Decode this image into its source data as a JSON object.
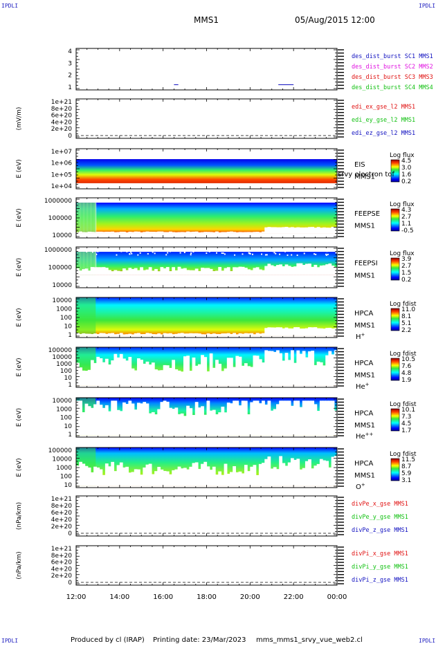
{
  "corner_label": "IPDLI",
  "header": {
    "spacecraft": "MMS1",
    "datetime": "05/Aug/2015 12:00"
  },
  "footer": {
    "produced_by": "Produced by cl (IRAP)",
    "printing_date": "Printing date: 23/Mar/2023",
    "script_name": "mms_mms1_srvy_vue_web2.cl"
  },
  "time_axis": {
    "ticks": [
      "12:00",
      "14:00",
      "16:00",
      "18:00",
      "20:00",
      "22:00",
      "00:00"
    ]
  },
  "colors": {
    "series_blue": "#1010c0",
    "series_magenta": "#e010e0",
    "series_red": "#e01010",
    "series_green": "#10c010"
  },
  "chart_data": [
    {
      "type": "line",
      "panel": "dist-burst",
      "yticks": [
        "4",
        "3",
        "2",
        "1"
      ],
      "ylim": [
        0.5,
        4.5
      ],
      "segments": [
        {
          "t0": 16.5,
          "t1": 16.7,
          "y": 1
        },
        {
          "t0": 21.3,
          "t1": 22.0,
          "y": 1
        }
      ],
      "legend": [
        {
          "text": "des_dist_burst SC1 MMS1",
          "color": "#1010c0"
        },
        {
          "text": "des_dist_burst SC2 MMS2",
          "color": "#e010e0"
        },
        {
          "text": "des_dist_burst SC3 MMS3",
          "color": "#e01010"
        },
        {
          "text": "des_dist_burst SC4 MMS4",
          "color": "#10c010"
        }
      ]
    },
    {
      "type": "line",
      "panel": "efield",
      "ylabel": "(mV/m)",
      "yticks": [
        "1e+21",
        "8e+20",
        "6e+20",
        "4e+20",
        "2e+20",
        "0"
      ],
      "legend": [
        {
          "text": "edi_ex_gse_l2 MMS1",
          "color": "#e01010"
        },
        {
          "text": "edi_ey_gse_l2 MMS1",
          "color": "#10c010"
        },
        {
          "text": "edi_ez_gse_l2 MMS1",
          "color": "#1010c0"
        }
      ]
    },
    {
      "type": "heatmap",
      "panel": "eis",
      "ylabel": "E (eV)",
      "yticks": [
        "1e+07",
        "1e+06",
        "1e+05",
        "1e+04"
      ],
      "side_labels": [
        "EIS",
        "MMS1"
      ],
      "overlay_text": "srvy electron tof",
      "colorbar": {
        "title": "Log flux",
        "ticks": [
          "4.5",
          "3.0",
          "1.6",
          "0.2"
        ]
      }
    },
    {
      "type": "heatmap",
      "panel": "feepse",
      "ylabel": "E (eV)",
      "yticks": [
        "1000000",
        "100000",
        "10000"
      ],
      "side_labels": [
        "FEEPSE",
        "MMS1"
      ],
      "colorbar": {
        "title": "Log flux",
        "ticks": [
          "4.3",
          "2.7",
          "1.1",
          "-0.5"
        ]
      }
    },
    {
      "type": "heatmap",
      "panel": "feepsi",
      "ylabel": "E (eV)",
      "yticks": [
        "1000000",
        "100000",
        "10000"
      ],
      "side_labels": [
        "FEEPSI",
        "MMS1"
      ],
      "colorbar": {
        "title": "Log flux",
        "ticks": [
          "3.9",
          "2.7",
          "1.5",
          "0.2"
        ]
      }
    },
    {
      "type": "heatmap",
      "panel": "hpca-h",
      "ylabel": "E (eV)",
      "yticks": [
        "10000",
        "1000",
        "100",
        "10",
        "1"
      ],
      "side_labels": [
        "HPCA",
        "MMS1"
      ],
      "species": "H",
      "species_sup": "+",
      "colorbar": {
        "title": "Log fdist",
        "ticks": [
          "11.0",
          "8.1",
          "5.1",
          "2.2"
        ]
      }
    },
    {
      "type": "heatmap",
      "panel": "hpca-he",
      "ylabel": "E (eV)",
      "yticks": [
        "100000",
        "10000",
        "1000",
        "100",
        "10",
        "1"
      ],
      "side_labels": [
        "HPCA",
        "MMS1"
      ],
      "species": "He",
      "species_sup": "+",
      "colorbar": {
        "title": "Log fdist",
        "ticks": [
          "10.5",
          "7.6",
          "4.8",
          "1.9"
        ]
      }
    },
    {
      "type": "heatmap",
      "panel": "hpca-hepp",
      "ylabel": "E (eV)",
      "yticks": [
        "10000",
        "1000",
        "100",
        "10",
        "1"
      ],
      "side_labels": [
        "HPCA",
        "MMS1"
      ],
      "species": "He",
      "species_sup": "++",
      "colorbar": {
        "title": "Log fdist",
        "ticks": [
          "10.1",
          "7.3",
          "4.5",
          "1.7"
        ]
      }
    },
    {
      "type": "heatmap",
      "panel": "hpca-o",
      "ylabel": "E (eV)",
      "yticks": [
        "100000",
        "10000",
        "1000",
        "100",
        "10"
      ],
      "side_labels": [
        "HPCA",
        "MMS1"
      ],
      "species": "O",
      "species_sup": "+",
      "colorbar": {
        "title": "Log fdist",
        "ticks": [
          "11.5",
          "8.7",
          "5.9",
          "3.1"
        ]
      }
    },
    {
      "type": "line",
      "panel": "divpe",
      "ylabel": "(nPa/km)",
      "yticks": [
        "1e+21",
        "8e+20",
        "6e+20",
        "4e+20",
        "2e+20",
        "0"
      ],
      "legend": [
        {
          "text": "divPe_x_gse MMS1",
          "color": "#e01010"
        },
        {
          "text": "divPe_y_gse MMS1",
          "color": "#10c010"
        },
        {
          "text": "divPe_z_gse MMS1",
          "color": "#1010c0"
        }
      ]
    },
    {
      "type": "line",
      "panel": "divpi",
      "ylabel": "(nPa/km)",
      "yticks": [
        "1e+21",
        "8e+20",
        "6e+20",
        "4e+20",
        "2e+20",
        "0"
      ],
      "legend": [
        {
          "text": "divPi_x_gse MMS1",
          "color": "#e01010"
        },
        {
          "text": "divPi_y_gse MMS1",
          "color": "#10c010"
        },
        {
          "text": "divPi_z_gse MMS1",
          "color": "#1010c0"
        }
      ]
    }
  ]
}
